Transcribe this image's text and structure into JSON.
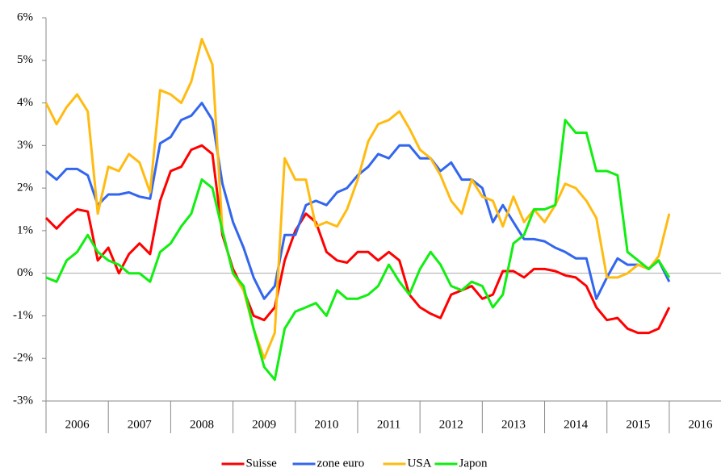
{
  "chart_data": {
    "type": "line",
    "x": [
      2006,
      2006.17,
      2006.33,
      2006.5,
      2006.67,
      2006.83,
      2007,
      2007.17,
      2007.33,
      2007.5,
      2007.67,
      2007.83,
      2008,
      2008.17,
      2008.33,
      2008.5,
      2008.67,
      2008.83,
      2009,
      2009.17,
      2009.33,
      2009.5,
      2009.67,
      2009.83,
      2010,
      2010.17,
      2010.33,
      2010.5,
      2010.67,
      2010.83,
      2011,
      2011.17,
      2011.33,
      2011.5,
      2011.67,
      2011.83,
      2012,
      2012.17,
      2012.33,
      2012.5,
      2012.67,
      2012.83,
      2013,
      2013.17,
      2013.33,
      2013.5,
      2013.67,
      2013.83,
      2014,
      2014.17,
      2014.33,
      2014.5,
      2014.67,
      2014.83,
      2015,
      2015.17,
      2015.33,
      2015.5,
      2015.67,
      2015.83,
      2016
    ],
    "series": [
      {
        "name": "Suisse",
        "color": "#ff0000",
        "values": [
          1.3,
          1.05,
          1.3,
          1.5,
          1.45,
          0.3,
          0.6,
          0.0,
          0.45,
          0.7,
          0.45,
          1.7,
          2.4,
          2.5,
          2.9,
          3.0,
          2.8,
          0.9,
          0.1,
          -0.4,
          -1.0,
          -1.1,
          -0.8,
          0.3,
          1.0,
          1.4,
          1.2,
          0.5,
          0.3,
          0.25,
          0.5,
          0.5,
          0.3,
          0.5,
          0.3,
          -0.5,
          -0.8,
          -0.95,
          -1.05,
          -0.5,
          -0.4,
          -0.3,
          -0.6,
          -0.5,
          0.05,
          0.05,
          -0.1,
          0.1,
          0.1,
          0.05,
          -0.05,
          -0.1,
          -0.3,
          -0.8,
          -1.1,
          -1.05,
          -1.3,
          -1.4,
          -1.4,
          -1.3,
          -0.8
        ]
      },
      {
        "name": "zone euro",
        "color": "#3366ee",
        "values": [
          2.4,
          2.2,
          2.45,
          2.45,
          2.3,
          1.6,
          1.85,
          1.85,
          1.9,
          1.8,
          1.75,
          3.05,
          3.2,
          3.6,
          3.7,
          4.0,
          3.6,
          2.1,
          1.2,
          0.6,
          -0.1,
          -0.6,
          -0.3,
          0.9,
          0.9,
          1.6,
          1.7,
          1.6,
          1.9,
          2.0,
          2.3,
          2.5,
          2.8,
          2.7,
          3.0,
          3.0,
          2.7,
          2.7,
          2.4,
          2.6,
          2.2,
          2.2,
          2.0,
          1.2,
          1.6,
          1.2,
          0.8,
          0.8,
          0.75,
          0.6,
          0.5,
          0.35,
          0.35,
          -0.6,
          -0.1,
          0.35,
          0.2,
          0.2,
          0.1,
          0.3,
          -0.2
        ]
      },
      {
        "name": "USA",
        "color": "#ffbb11",
        "values": [
          4.0,
          3.5,
          3.9,
          4.2,
          3.8,
          1.4,
          2.5,
          2.4,
          2.8,
          2.6,
          1.9,
          4.3,
          4.2,
          4.0,
          4.5,
          5.5,
          4.9,
          1.0,
          0.0,
          -0.4,
          -1.3,
          -2.0,
          -1.4,
          2.7,
          2.2,
          2.2,
          1.1,
          1.2,
          1.1,
          1.5,
          2.2,
          3.1,
          3.5,
          3.6,
          3.8,
          3.4,
          2.9,
          2.7,
          2.3,
          1.7,
          1.4,
          2.2,
          1.8,
          1.7,
          1.1,
          1.8,
          1.2,
          1.5,
          1.2,
          1.6,
          2.1,
          2.0,
          1.7,
          1.3,
          -0.1,
          -0.1,
          0.0,
          0.2,
          0.1,
          0.4,
          1.4
        ]
      },
      {
        "name": "Japon",
        "color": "#11ee11",
        "values": [
          -0.1,
          -0.2,
          0.3,
          0.5,
          0.9,
          0.5,
          0.3,
          0.2,
          0.0,
          0.0,
          -0.2,
          0.5,
          0.7,
          1.1,
          1.4,
          2.2,
          2.0,
          1.0,
          0.0,
          -0.3,
          -1.3,
          -2.2,
          -2.5,
          -1.3,
          -0.9,
          -0.8,
          -0.7,
          -1.0,
          -0.4,
          -0.6,
          -0.6,
          -0.5,
          -0.3,
          0.2,
          -0.2,
          -0.5,
          0.1,
          0.5,
          0.2,
          -0.3,
          -0.4,
          -0.2,
          -0.3,
          -0.8,
          -0.5,
          0.7,
          0.9,
          1.5,
          1.5,
          1.6,
          3.6,
          3.3,
          3.3,
          2.4,
          2.4,
          2.3,
          0.5,
          0.3,
          0.1,
          0.3,
          -0.1
        ]
      }
    ],
    "xlim": [
      2006,
      2016.83
    ],
    "xticks": [
      2006,
      2007,
      2008,
      2009,
      2010,
      2011,
      2012,
      2013,
      2014,
      2015,
      2016
    ],
    "ylim": [
      -3,
      6
    ],
    "yticks": [
      {
        "value": -3,
        "label": "-3%"
      },
      {
        "value": -2,
        "label": "-2%"
      },
      {
        "value": -1,
        "label": "-1%"
      },
      {
        "value": 0,
        "label": "0%"
      },
      {
        "value": 1,
        "label": "1%"
      },
      {
        "value": 2,
        "label": "2%"
      },
      {
        "value": 3,
        "label": "3%"
      },
      {
        "value": 4,
        "label": "4%"
      },
      {
        "value": 5,
        "label": "5%"
      },
      {
        "value": 6,
        "label": "6%"
      }
    ],
    "grid": false,
    "legend": "bottom"
  }
}
